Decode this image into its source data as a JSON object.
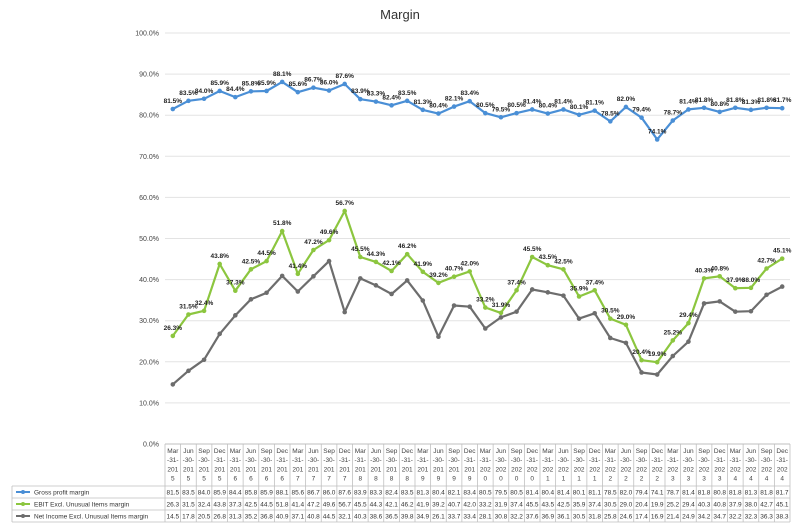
{
  "chart_data": {
    "type": "line",
    "title": "Margin",
    "ylim": [
      0,
      100
    ],
    "yticks": [
      "0.0%",
      "10.0%",
      "20.0%",
      "30.0%",
      "40.0%",
      "50.0%",
      "60.0%",
      "70.0%",
      "80.0%",
      "90.0%",
      "100.0%"
    ],
    "grid": true,
    "legend": "data-table-below",
    "categories": [
      "Mar-31-2015",
      "Jun-30-2015",
      "Sep-30-2015",
      "Dec-31-2015",
      "Mar-31-2016",
      "Jun-30-2016",
      "Sep-30-2016",
      "Dec-31-2016",
      "Mar-31-2017",
      "Jun-30-2017",
      "Sep-30-2017",
      "Dec-31-2017",
      "Mar-31-2018",
      "Jun-30-2018",
      "Sep-30-2018",
      "Dec-31-2018",
      "Mar-31-2019",
      "Jun-30-2019",
      "Sep-30-2019",
      "Dec-31-2019",
      "Mar-31-2020",
      "Jun-30-2020",
      "Sep-30-2020",
      "Dec-31-2020",
      "Mar-31-2021",
      "Jun-30-2021",
      "Sep-30-2021",
      "Dec-31-2021",
      "Mar-31-2022",
      "Jun-30-2022",
      "Sep-30-2022",
      "Dec-31-2022",
      "Mar-31-2023",
      "Jun-30-2023",
      "Sep-30-2023",
      "Dec-31-2023",
      "Mar-31-2024",
      "Jun-30-2024",
      "Sep-30-2024",
      "Dec-31-2024"
    ],
    "series": [
      {
        "name": "Gross profit margin",
        "color": "#4a8fd6",
        "values": [
          81.5,
          83.5,
          84.0,
          85.9,
          84.4,
          85.8,
          85.9,
          88.1,
          85.6,
          86.7,
          86.0,
          87.6,
          83.9,
          83.3,
          82.4,
          83.5,
          81.3,
          80.4,
          82.1,
          83.4,
          80.5,
          79.5,
          80.5,
          81.4,
          80.4,
          81.4,
          80.1,
          81.1,
          78.5,
          82.0,
          79.4,
          74.1,
          78.7,
          81.4,
          81.8,
          80.8,
          81.8,
          81.3,
          81.8,
          81.7
        ],
        "labels": [
          "81.5%",
          "83.5%",
          "84.0%",
          "85.9%",
          "84.4%",
          "85.8%",
          "85.9%",
          "88.1%",
          "85.6%",
          "86.7%",
          "86.0%",
          "87.6%",
          "83.9%",
          "83.3%",
          "82.4%",
          "83.5%",
          "81.3%",
          "80.4%",
          "82.1%",
          "83.4%",
          "80.5%",
          "79.5%",
          "80.5%",
          "81.4%",
          "80.4%",
          "81.4%",
          "80.1%",
          "81.1%",
          "78.5%",
          "82.0%",
          "79.4%",
          "74.1%",
          "78.7%",
          "81.4%",
          "81.8%",
          "80.8%",
          "81.8%",
          "81.3%",
          "81.8%",
          "81.7%"
        ],
        "table": [
          "81.5",
          "83.5",
          "84.0",
          "85.9",
          "84.4",
          "85.8",
          "85.9",
          "88.1",
          "85.6",
          "86.7",
          "86.0",
          "87.6",
          "83.9",
          "83.3",
          "82.4",
          "83.5",
          "81.3",
          "80.4",
          "82.1",
          "83.4",
          "80.5",
          "79.5",
          "80.5",
          "81.4",
          "80.4",
          "81.4",
          "80.1",
          "81.1",
          "78.5",
          "82.0",
          "79.4",
          "74.1",
          "78.7",
          "81.4",
          "81.8",
          "80.8",
          "81.8",
          "81.3",
          "81.8",
          "81.7"
        ]
      },
      {
        "name": "EBIT Excl. Unusual Items margin",
        "color": "#8cc63f",
        "values": [
          26.3,
          31.5,
          32.4,
          43.8,
          37.3,
          42.5,
          44.5,
          51.8,
          41.4,
          47.2,
          49.6,
          56.7,
          45.5,
          44.3,
          42.1,
          46.2,
          41.9,
          39.2,
          40.7,
          42.0,
          33.2,
          31.9,
          37.4,
          45.5,
          43.5,
          42.5,
          35.9,
          37.4,
          30.5,
          29.0,
          20.4,
          19.9,
          25.2,
          29.4,
          40.3,
          40.8,
          37.9,
          38.0,
          42.7,
          45.1
        ],
        "labels": [
          "26.3%",
          "31.5%",
          "32.4%",
          "43.8%",
          "37.3%",
          "42.5%",
          "44.5%",
          "51.8%",
          "41.4%",
          "47.2%",
          "49.6%",
          "56.7%",
          "45.5%",
          "44.3%",
          "42.1%",
          "46.2%",
          "41.9%",
          "39.2%",
          "40.7%",
          "42.0%",
          "33.2%",
          "31.9%",
          "37.4%",
          "45.5%",
          "43.5%",
          "42.5%",
          "35.9%",
          "37.4%",
          "30.5%",
          "29.0%",
          "20.4%",
          "19.9%",
          "25.2%",
          "29.4%",
          "40.3%",
          "40.8%",
          "37.9%",
          "38.0%",
          "42.7%",
          "45.1%"
        ],
        "table": [
          "26.3",
          "31.5",
          "32.4",
          "43.8",
          "37.3",
          "42.5",
          "44.5",
          "51.8",
          "41.4",
          "47.2",
          "49.6",
          "56.7",
          "45.5",
          "44.3",
          "42.1",
          "46.2",
          "41.9",
          "39.2",
          "40.7",
          "42.0",
          "33.2",
          "31.9",
          "37.4",
          "45.5",
          "43.5",
          "42.5",
          "35.9",
          "37.4",
          "30.5",
          "29.0",
          "20.4",
          "19.9",
          "25.2",
          "29.4",
          "40.3",
          "40.8",
          "37.9",
          "38.0",
          "42.7",
          "45.1"
        ]
      },
      {
        "name": "Net Income Excl. Unusual Items margin",
        "color": "#6d6d6d",
        "values": [
          14.5,
          17.8,
          20.5,
          26.8,
          31.3,
          35.2,
          36.8,
          40.9,
          37.1,
          40.8,
          44.5,
          32.1,
          40.3,
          38.6,
          36.5,
          39.8,
          34.9,
          26.1,
          33.7,
          33.4,
          28.1,
          30.8,
          32.2,
          37.6,
          36.9,
          36.1,
          30.5,
          31.8,
          25.8,
          24.6,
          17.4,
          16.9,
          21.4,
          24.9,
          34.2,
          34.7,
          32.2,
          32.3,
          36.3,
          38.3
        ],
        "table": [
          "14.5",
          "17.8",
          "20.5",
          "26.8",
          "31.3",
          "35.2",
          "36.8",
          "40.9",
          "37.1",
          "40.8",
          "44.5",
          "32.1",
          "40.3",
          "38.6",
          "36.5",
          "39.8",
          "34.9",
          "26.1",
          "33.7",
          "33.4",
          "28.1",
          "30.8",
          "32.2",
          "37.6",
          "36.9",
          "36.1",
          "30.5",
          "31.8",
          "25.8",
          "24.6",
          "17.4",
          "16.9",
          "21.4",
          "24.9",
          "34.2",
          "34.7",
          "32.2",
          "32.3",
          "36.3",
          "38.3"
        ]
      }
    ]
  }
}
